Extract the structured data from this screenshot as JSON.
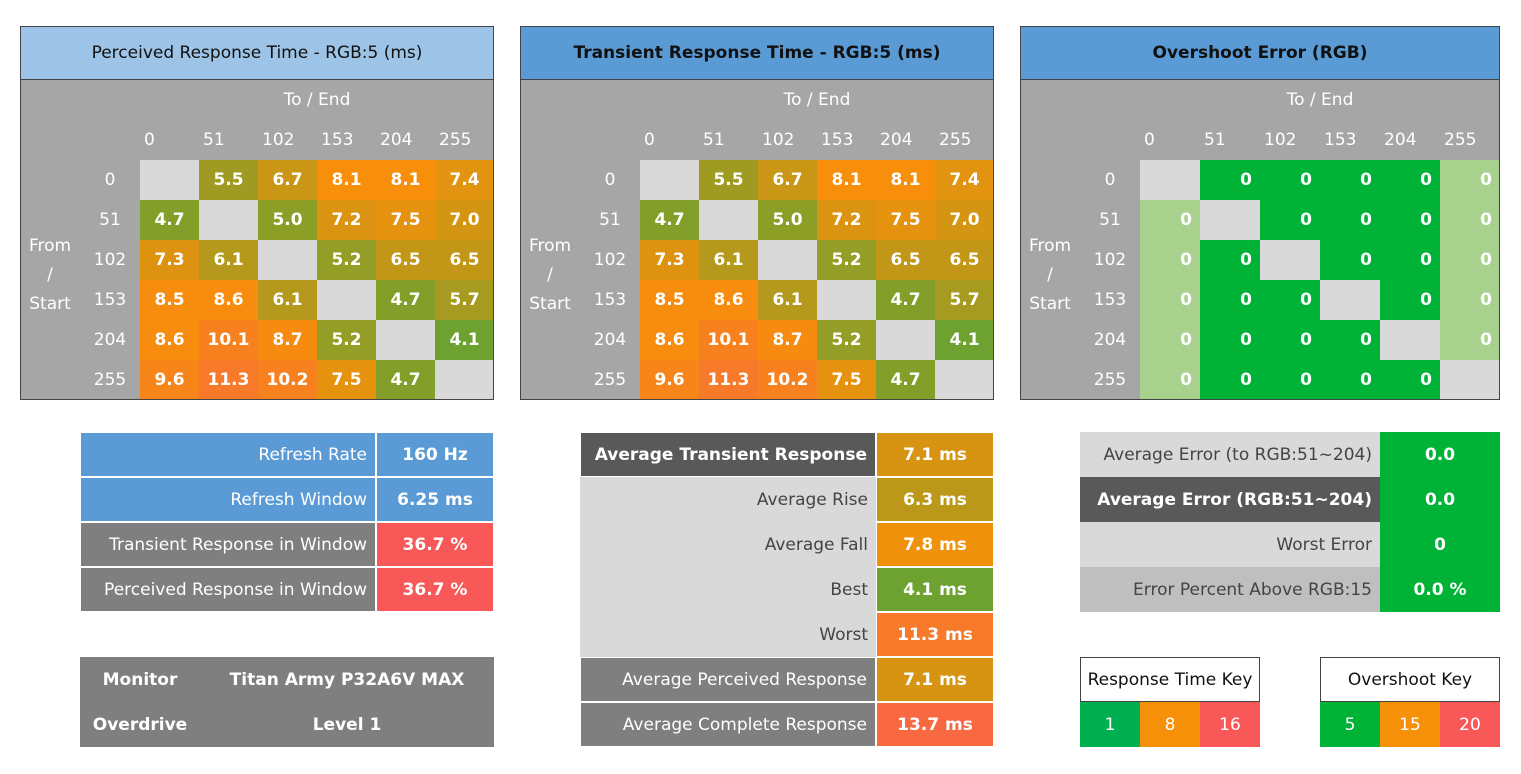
{
  "matrices": [
    {
      "title": "Perceived Response Time - RGB:5 (ms)",
      "col_header": "To / End",
      "row_header": [
        "From",
        "/",
        "Start"
      ],
      "levels": [
        "0",
        "51",
        "102",
        "153",
        "204",
        "255"
      ],
      "rows": [
        [
          null,
          "5.5",
          "6.7",
          "8.1",
          "8.1",
          "7.4"
        ],
        [
          "4.7",
          null,
          "5.0",
          "7.2",
          "7.5",
          "7.0"
        ],
        [
          "7.3",
          "6.1",
          null,
          "5.2",
          "6.5",
          "6.5"
        ],
        [
          "8.5",
          "8.6",
          "6.1",
          null,
          "4.7",
          "5.7"
        ],
        [
          "8.6",
          "10.1",
          "8.7",
          "5.2",
          null,
          "4.1"
        ],
        [
          "9.6",
          "11.3",
          "10.2",
          "7.5",
          "4.7",
          null
        ]
      ]
    },
    {
      "title": "Transient Response Time - RGB:5 (ms)",
      "col_header": "To / End",
      "row_header": [
        "From",
        "/",
        "Start"
      ],
      "levels": [
        "0",
        "51",
        "102",
        "153",
        "204",
        "255"
      ],
      "rows": [
        [
          null,
          "5.5",
          "6.7",
          "8.1",
          "8.1",
          "7.4"
        ],
        [
          "4.7",
          null,
          "5.0",
          "7.2",
          "7.5",
          "7.0"
        ],
        [
          "7.3",
          "6.1",
          null,
          "5.2",
          "6.5",
          "6.5"
        ],
        [
          "8.5",
          "8.6",
          "6.1",
          null,
          "4.7",
          "5.7"
        ],
        [
          "8.6",
          "10.1",
          "8.7",
          "5.2",
          null,
          "4.1"
        ],
        [
          "9.6",
          "11.3",
          "10.2",
          "7.5",
          "4.7",
          null
        ]
      ]
    },
    {
      "title": "Overshoot Error (RGB)",
      "col_header": "To / End",
      "row_header": [
        "From",
        "/",
        "Start"
      ],
      "levels": [
        "0",
        "51",
        "102",
        "153",
        "204",
        "255"
      ],
      "rows": [
        [
          null,
          "0",
          "0",
          "0",
          "0",
          "0"
        ],
        [
          "0",
          null,
          "0",
          "0",
          "0",
          "0"
        ],
        [
          "0",
          "0",
          null,
          "0",
          "0",
          "0"
        ],
        [
          "0",
          "0",
          "0",
          null,
          "0",
          "0"
        ],
        [
          "0",
          "0",
          "0",
          "0",
          null,
          "0"
        ],
        [
          "0",
          "0",
          "0",
          "0",
          "0",
          null
        ]
      ]
    }
  ],
  "stats": [
    [
      "Refresh Rate",
      "160 Hz"
    ],
    [
      "Refresh Window",
      "6.25 ms"
    ],
    [
      "Transient Response in Window",
      "36.7 %"
    ],
    [
      "Perceived Response in Window",
      "36.7 %"
    ]
  ],
  "monitor": [
    [
      "Monitor",
      "Titan Army P32A6V MAX"
    ],
    [
      "Overdrive",
      "Level 1"
    ]
  ],
  "transient": [
    [
      "Average Transient Response",
      "7.1 ms"
    ],
    [
      "Average Rise",
      "6.3 ms"
    ],
    [
      "Average Fall",
      "7.8 ms"
    ],
    [
      "Best",
      "4.1 ms"
    ],
    [
      "Worst",
      "11.3 ms"
    ],
    [
      "Average Perceived Response",
      "7.1 ms"
    ],
    [
      "Average Complete Response",
      "13.7 ms"
    ]
  ],
  "error": [
    [
      "Average Error (to RGB:51~204)",
      "0.0"
    ],
    [
      "Average Error (RGB:51~204)",
      "0.0"
    ],
    [
      "Worst Error",
      "0"
    ],
    [
      "Error Percent Above RGB:15",
      "0.0 %"
    ]
  ],
  "response_key": {
    "title": "Response Time Key",
    "values": [
      1,
      8,
      16
    ],
    "colors": [
      "#00b050",
      "#f79009",
      "#f85858"
    ]
  },
  "overshoot_key": {
    "title": "Overshoot Key",
    "values": [
      5,
      15,
      20
    ],
    "colors": [
      "#00b236",
      "#f79009",
      "#f85858"
    ],
    "edge_color": "#a9d18e"
  }
}
